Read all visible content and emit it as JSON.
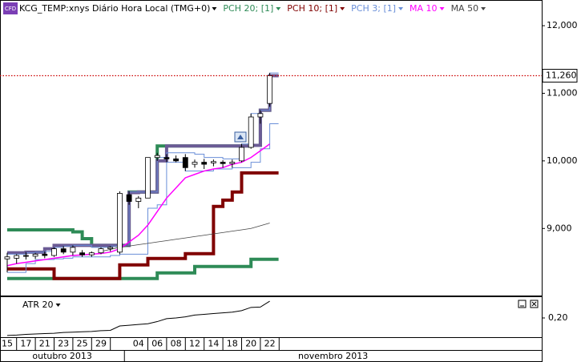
{
  "chart_data": {
    "type": "candlestick",
    "icon": "CFD",
    "title": "KCG_TEMP:xnys Diário Hora Local (TMG+0)",
    "categories": [
      "15",
      null,
      "17",
      null,
      "21",
      null,
      "23",
      null,
      "25",
      null,
      "29",
      null,
      null,
      null,
      "04",
      null,
      "06",
      null,
      "08",
      null,
      "12",
      null,
      "14",
      null,
      "18",
      null,
      "20",
      null,
      "22"
    ],
    "months": [
      "outubro 2013",
      "novembro 2013"
    ],
    "candles": {
      "open": [
        8550,
        8560,
        8600,
        8590,
        8620,
        8600,
        8700,
        8650,
        8640,
        8610,
        8640,
        8700,
        8650,
        9500,
        9400,
        9450,
        10050,
        10050,
        10030,
        10050,
        9950,
        9980,
        9970,
        9980,
        9960,
        10000,
        10200,
        10650,
        10850
      ],
      "high": [
        8640,
        8620,
        8650,
        8640,
        8660,
        8720,
        8740,
        8750,
        8680,
        8660,
        8720,
        8740,
        9550,
        9550,
        9480,
        10050,
        10120,
        10100,
        10080,
        10100,
        10020,
        10030,
        10020,
        10010,
        10020,
        10250,
        10700,
        10750,
        11300
      ],
      "low": [
        8350,
        8480,
        8540,
        8550,
        8560,
        8580,
        8620,
        8600,
        8580,
        8580,
        8620,
        8660,
        8620,
        9350,
        9300,
        9450,
        10000,
        9980,
        9980,
        9850,
        9900,
        9880,
        9920,
        9900,
        9900,
        9980,
        10180,
        10550,
        10800
      ],
      "close": [
        8580,
        8600,
        8590,
        8620,
        8600,
        8700,
        8650,
        8720,
        8610,
        8640,
        8700,
        8720,
        9520,
        9400,
        9450,
        10050,
        10080,
        10030,
        10000,
        9900,
        9980,
        9950,
        9990,
        9960,
        9980,
        10200,
        10650,
        10700,
        11260
      ]
    },
    "last_value": 11260,
    "last_value_label": "11,260",
    "last_line_color": "#cc0000",
    "series": [
      {
        "name": "PCH 20; [1]",
        "color": "#2e8b57",
        "step": true,
        "upper": [
          8980,
          8980,
          8980,
          8980,
          8980,
          8980,
          8980,
          8950,
          8850,
          8750,
          8750,
          8750,
          8750,
          9540,
          9540,
          9540,
          10220,
          10220,
          10220,
          10220,
          10220,
          10220,
          10220,
          10220,
          10220,
          10220,
          10230,
          10750,
          11260
        ],
        "lower": [
          8260,
          8260,
          8260,
          8260,
          8260,
          8260,
          8260,
          8260,
          8260,
          8260,
          8260,
          8260,
          8260,
          8260,
          8260,
          8260,
          8343,
          8343,
          8343,
          8343,
          8438,
          8438,
          8438,
          8438,
          8438,
          8438,
          8544,
          8544,
          8544
        ]
      },
      {
        "name": "PCH 10; [1]",
        "color": "#800000",
        "upper_color": "#6b5b95",
        "step": true,
        "upper": [
          8640,
          8640,
          8650,
          8650,
          8700,
          8750,
          8750,
          8750,
          8750,
          8750,
          8750,
          8750,
          8750,
          9530,
          9540,
          9540,
          10000,
          10220,
          10220,
          10220,
          10220,
          10220,
          10220,
          10220,
          10220,
          10220,
          10230,
          10750,
          11260
        ],
        "lower": [
          8402,
          8402,
          8402,
          8402,
          8402,
          8260,
          8260,
          8260,
          8260,
          8260,
          8260,
          8260,
          8462,
          8462,
          8462,
          8556,
          8556,
          8556,
          8556,
          8627,
          8627,
          8627,
          9326,
          9420,
          9539,
          9823,
          9823,
          9823,
          9823
        ]
      },
      {
        "name": "PCH 3; [1]",
        "color": "#6a8fd8",
        "step": true,
        "upper": [
          8620,
          8620,
          8640,
          8650,
          8660,
          8720,
          8740,
          8750,
          8750,
          8720,
          8720,
          8740,
          8740,
          9540,
          9540,
          9540,
          10050,
          10120,
          10120,
          10120,
          10100,
          10050,
          10050,
          10030,
          10030,
          10250,
          10700,
          10750,
          11300
        ],
        "lower": [
          8350,
          8350,
          8480,
          8540,
          8540,
          8550,
          8560,
          8580,
          8580,
          8580,
          8580,
          8600,
          8620,
          8620,
          8620,
          9300,
          9350,
          9980,
          9980,
          9850,
          9850,
          9850,
          9880,
          9880,
          9900,
          9900,
          9980,
          10180,
          10550
        ]
      },
      {
        "name": "MA 10",
        "color": "#ff00ff",
        "values": [
          8450,
          8480,
          8500,
          8520,
          8540,
          8560,
          8580,
          8600,
          8610,
          8620,
          8630,
          8650,
          8700,
          8800,
          8900,
          9050,
          9250,
          9450,
          9600,
          9750,
          9800,
          9850,
          9880,
          9900,
          9950,
          9980,
          10050,
          10150,
          10250
        ]
      },
      {
        "name": "MA 50",
        "color": "#444444",
        "values": [
          null,
          null,
          null,
          null,
          null,
          null,
          null,
          null,
          null,
          null,
          8660,
          8690,
          8720,
          8740,
          8760,
          8780,
          8800,
          8820,
          8840,
          8860,
          8880,
          8900,
          8920,
          8940,
          8960,
          8980,
          9000,
          9040,
          9080
        ]
      }
    ],
    "ylim": [
      8020,
      12380
    ],
    "yticks": [
      {
        "value": 9000,
        "label": "9,000"
      },
      {
        "value": 10000,
        "label": "10,000"
      },
      {
        "value": 11000,
        "label": "11,000"
      },
      {
        "value": 12000,
        "label": "12,000"
      }
    ],
    "atr": {
      "name": "ATR 20",
      "color": "#000000",
      "values": [
        0.152,
        0.153,
        0.155,
        0.156,
        0.157,
        0.158,
        0.16,
        0.161,
        0.162,
        0.163,
        0.165,
        0.166,
        0.178,
        0.18,
        0.182,
        0.184,
        0.19,
        0.198,
        0.2,
        0.203,
        0.208,
        0.21,
        0.212,
        0.214,
        0.216,
        0.22,
        0.229,
        0.23,
        0.246
      ],
      "ylim": [
        0.145,
        0.255
      ],
      "yticks": [
        {
          "value": 0.2,
          "label": "0,20"
        }
      ]
    }
  }
}
